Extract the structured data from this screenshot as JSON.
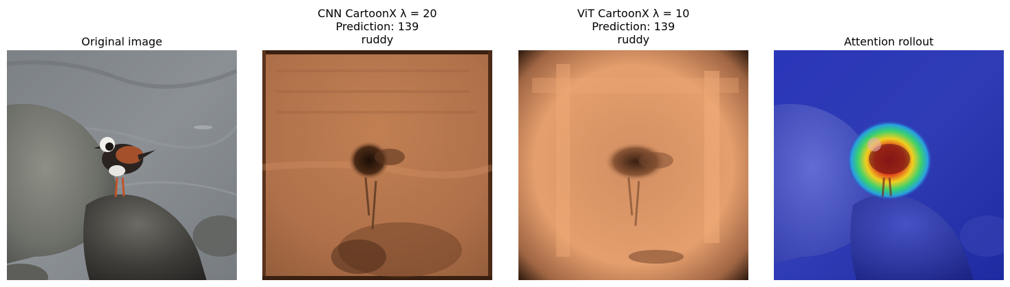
{
  "panels": [
    {
      "title_lines": [
        "Original image"
      ],
      "image": "bird-on-rock-photo"
    },
    {
      "title_lines": [
        "CNN CartoonX λ = 20",
        "Prediction: 139",
        "ruddy"
      ],
      "image": "cnn-cartoonx-copper-map"
    },
    {
      "title_lines": [
        "ViT CartoonX λ = 10",
        "Prediction: 139",
        "ruddy"
      ],
      "image": "vit-cartoonx-copper-map"
    },
    {
      "title_lines": [
        "Attention rollout"
      ],
      "image": "attention-rollout-jet-overlay"
    }
  ],
  "colors": {
    "copper_dark": "#1a0d05",
    "copper_mid": "#b8734a",
    "copper_light": "#f2ab78",
    "jet_low": "#2530b5",
    "jet_high": "#c81e1e"
  }
}
